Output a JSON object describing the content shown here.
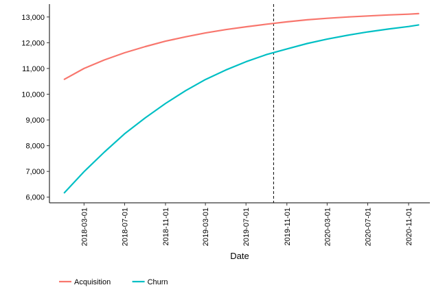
{
  "chart_data": {
    "type": "line",
    "title": "",
    "xlabel": "Date",
    "ylabel": "",
    "x_tick_labels": [
      "2018-03-01",
      "2018-07-01",
      "2018-11-01",
      "2019-03-01",
      "2019-07-01",
      "2019-11-01",
      "2020-03-01",
      "2020-07-01",
      "2020-11-01"
    ],
    "x_ticks": [
      "2018-03-01",
      "2018-07-01",
      "2018-11-01",
      "2019-03-01",
      "2019-07-01",
      "2019-11-01",
      "2020-03-01",
      "2020-07-01",
      "2020-11-01"
    ],
    "y_tick_labels": [
      "6,000",
      "7,000",
      "8,000",
      "9,000",
      "10,000",
      "11,000",
      "12,000",
      "13,000"
    ],
    "y_ticks": [
      6000,
      7000,
      8000,
      9000,
      10000,
      11000,
      12000,
      13000
    ],
    "xlim": [
      "2017-11-17",
      "2021-01-04"
    ],
    "ylim": [
      5780,
      13500
    ],
    "grid": false,
    "legend_position": "bottom-left",
    "vline": {
      "x": "2019-09-22",
      "style": "dashed",
      "color": "#000000"
    },
    "x": [
      "2018-01-01",
      "2018-03-01",
      "2018-05-01",
      "2018-07-01",
      "2018-09-01",
      "2018-11-01",
      "2019-01-01",
      "2019-03-01",
      "2019-05-01",
      "2019-07-01",
      "2019-09-01",
      "2019-11-01",
      "2020-01-01",
      "2020-03-01",
      "2020-05-01",
      "2020-07-01",
      "2020-09-01",
      "2020-11-01",
      "2020-12-01"
    ],
    "series": [
      {
        "name": "Acquisition",
        "color": "#F8766D",
        "values": [
          10580,
          11000,
          11330,
          11610,
          11850,
          12060,
          12230,
          12380,
          12510,
          12620,
          12720,
          12810,
          12890,
          12950,
          13000,
          13040,
          13080,
          13110,
          13130
        ]
      },
      {
        "name": "Churn",
        "color": "#00BFC4",
        "values": [
          6170,
          6990,
          7750,
          8460,
          9080,
          9640,
          10140,
          10570,
          10940,
          11260,
          11540,
          11760,
          11970,
          12140,
          12290,
          12420,
          12530,
          12630,
          12690
        ]
      }
    ]
  }
}
